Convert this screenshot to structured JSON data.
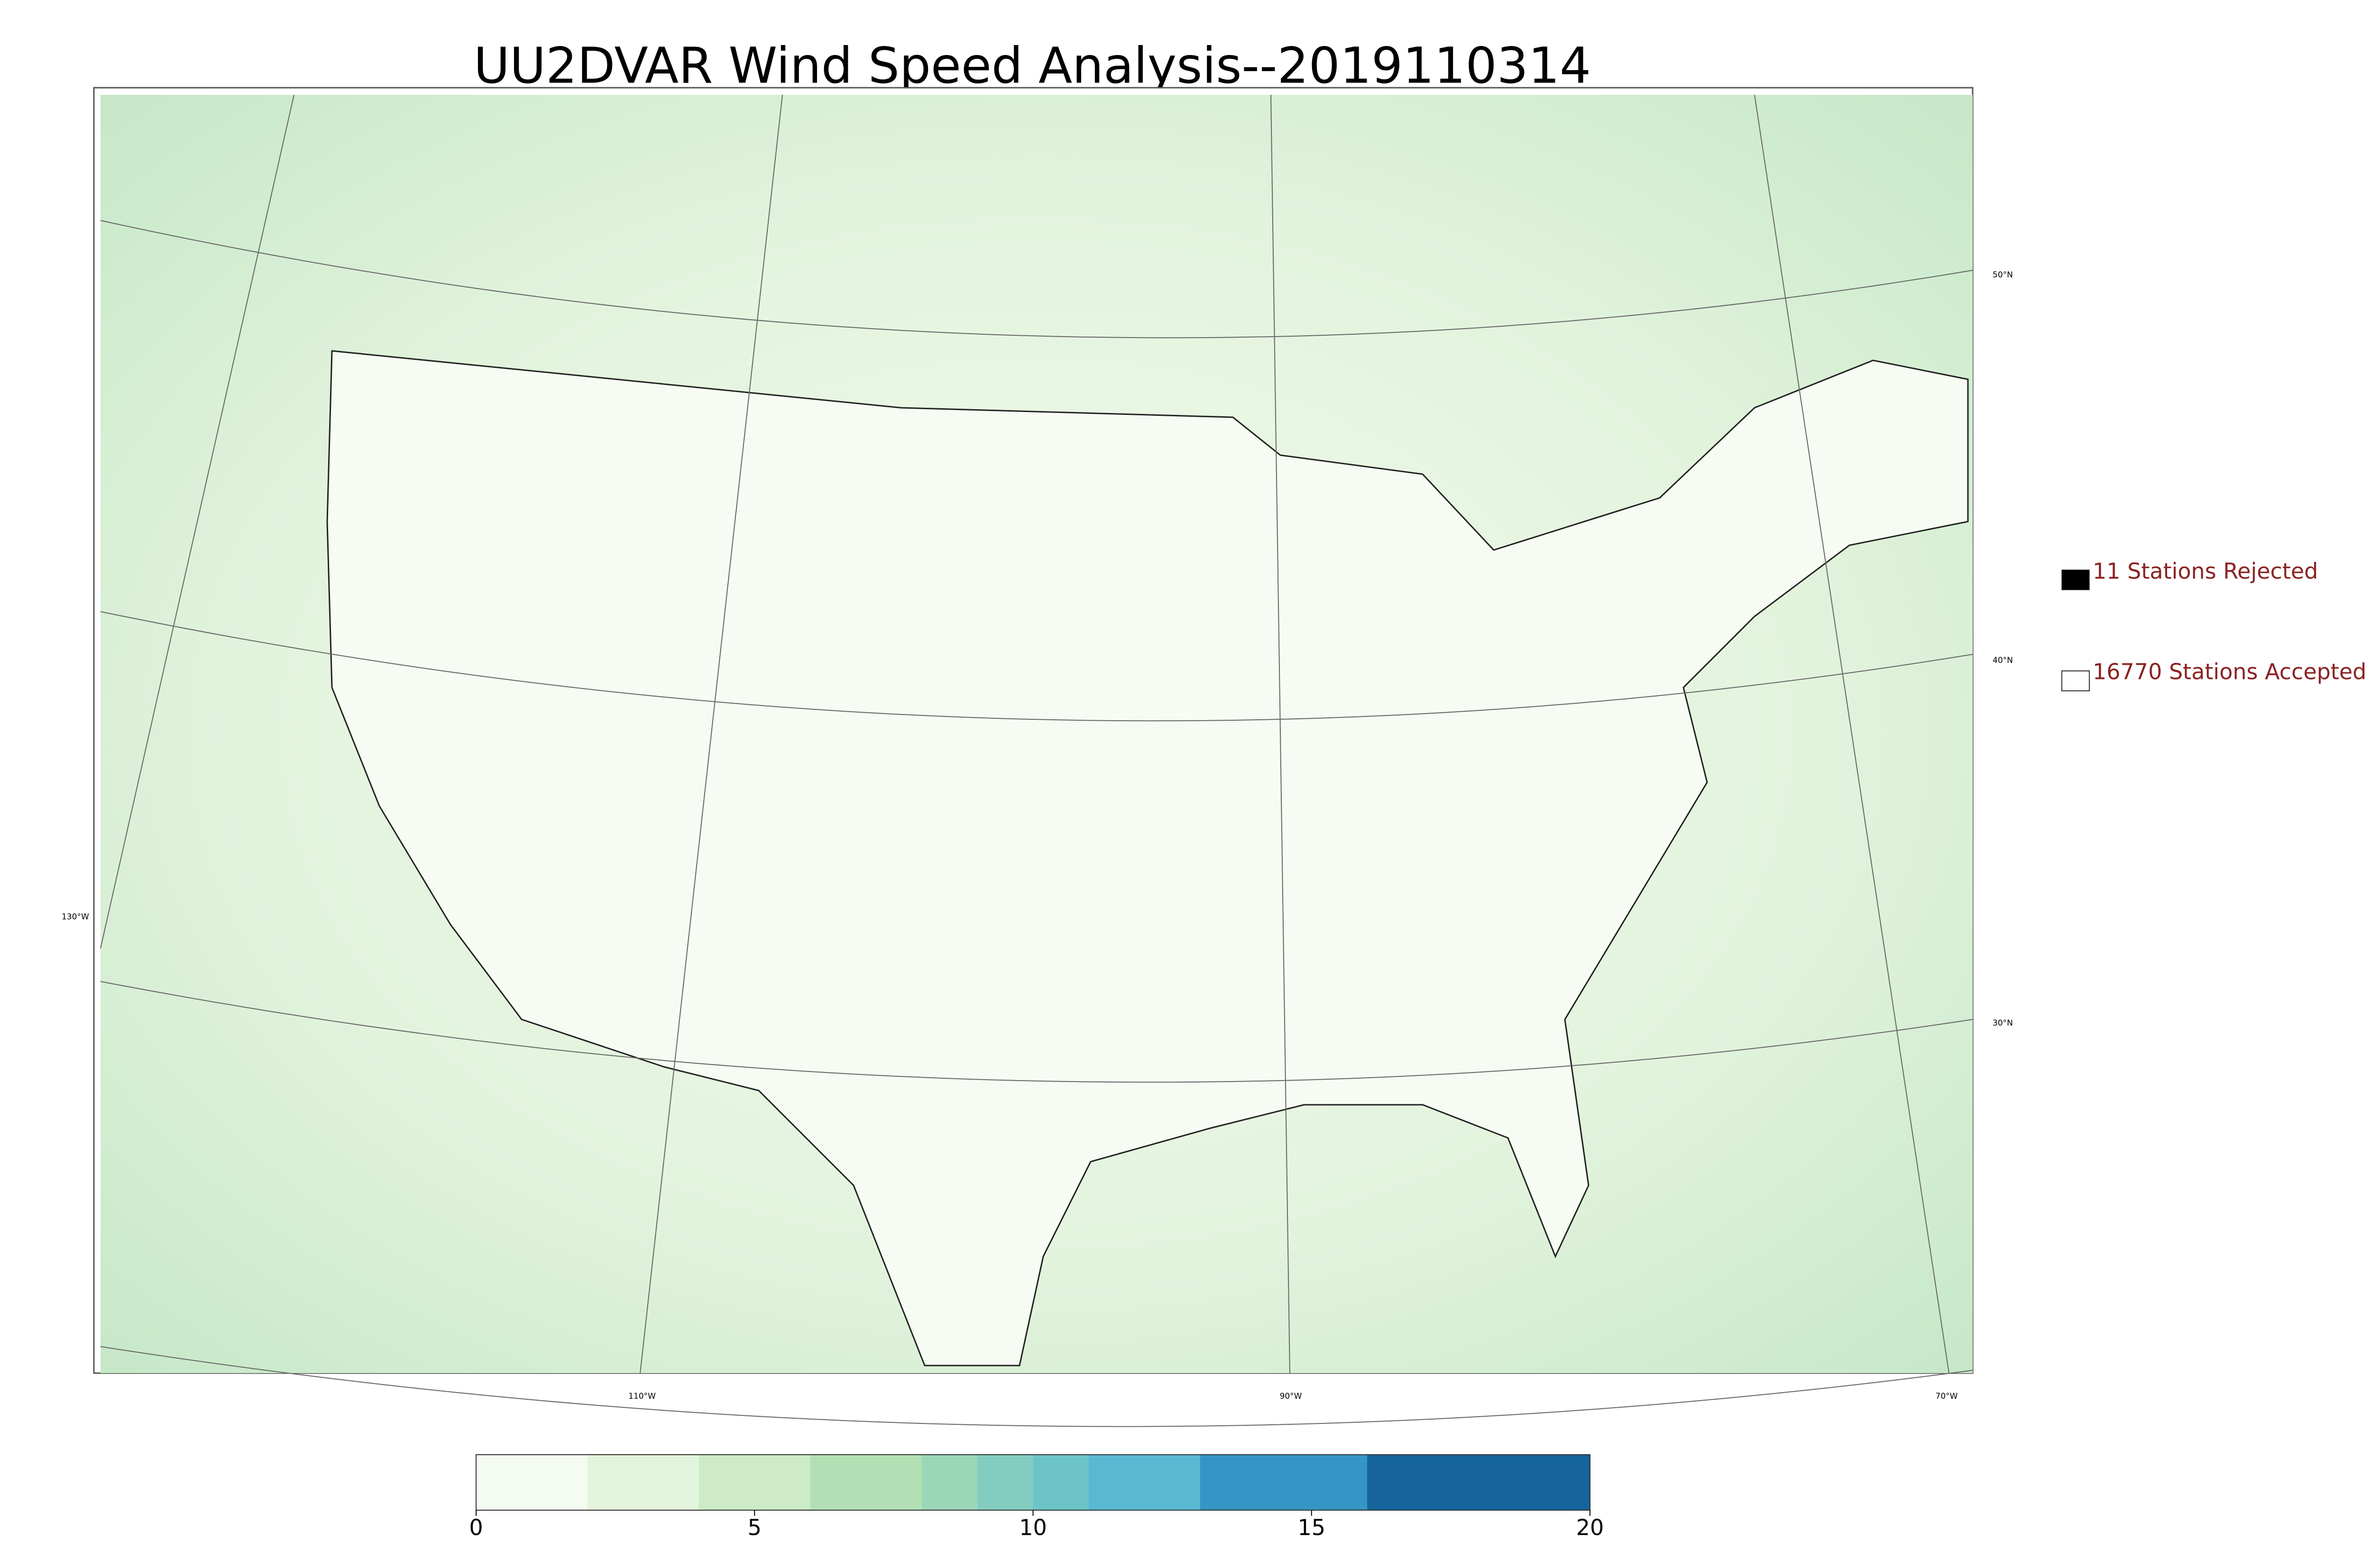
{
  "title": "UU2DVAR Wind Speed Analysis--2019110314",
  "legend": {
    "rejected": "11 Stations Rejected",
    "accepted": "16770 Stations Accepted"
  },
  "lat_labels": [
    "50°N",
    "40°N",
    "30°N"
  ],
  "lon_labels": [
    "130°W",
    "110°W",
    "90°W",
    "70°W"
  ],
  "colorbar": {
    "lim": [
      0,
      20
    ],
    "ticks": [
      0,
      5,
      10,
      15,
      20
    ],
    "levels": [
      0,
      2,
      4,
      6,
      8,
      9,
      10,
      11,
      13,
      16,
      20
    ],
    "colors": [
      "#f4fbf0",
      "#e3f4dc",
      "#cdebc6",
      "#b2e0b4",
      "#9ad6b8",
      "#82cdc0",
      "#6cc4c9",
      "#5ab8d3",
      "#3595c6",
      "#15649b"
    ]
  }
}
